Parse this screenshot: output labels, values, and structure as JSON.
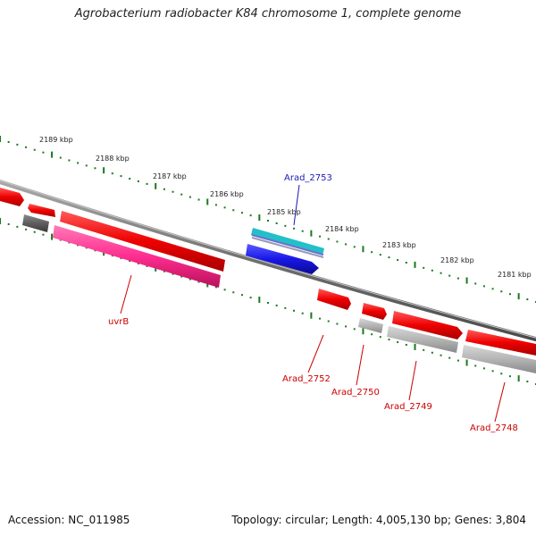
{
  "title": "Agrobacterium radiobacter K84 chromosome 1, complete genome",
  "footer": {
    "accession": "Accession: NC_011985",
    "topology": "Topology: circular; Length: 4,005,130 bp; Genes: 3,804"
  },
  "scale_labels": [
    "2189 kbp",
    "2188 kbp",
    "2187 kbp",
    "2186 kbp",
    "2185 kbp",
    "2184 kbp",
    "2183 kbp",
    "2182 kbp",
    "2181 kbp"
  ],
  "gene_labels": {
    "uvrB": "uvrB",
    "arad2753": "Arad_2753",
    "arad2752": "Arad_2752",
    "arad2750": "Arad_2750",
    "arad2749": "Arad_2749",
    "arad2748": "Arad_2748"
  },
  "colors": {
    "backbone": "#777777",
    "tick": "#1a7a1a",
    "cds_forward": "#ee0000",
    "gene_gray": "#b0b0b0",
    "uvrB": "#ff2d90",
    "arad2753_fill": "#22c0c8",
    "arad2753_cds": "#1818e8"
  }
}
